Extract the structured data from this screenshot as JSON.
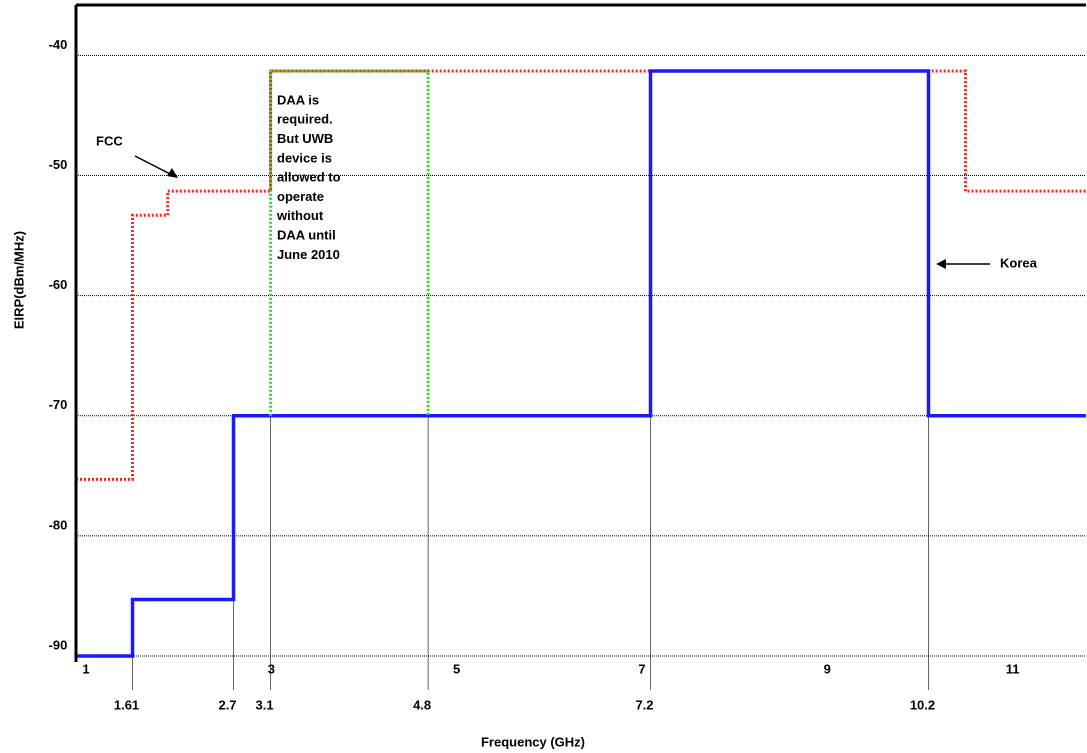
{
  "chart_data": {
    "type": "step-line",
    "x_label": "Frequency (GHz)",
    "y_label": "EIRP(dBm/MHz)",
    "xlim": [
      1,
      11.9
    ],
    "ylim": [
      -90.5,
      -35.8
    ],
    "xticks": [
      1,
      3,
      5,
      7,
      9,
      11
    ],
    "marker_ticks": [
      1.61,
      2.7,
      3.1,
      4.8,
      7.2,
      10.2
    ],
    "yticks": [
      -40,
      -50,
      -60,
      -70,
      -80,
      -90
    ],
    "grid": true,
    "series": [
      {
        "name": "FCC",
        "color": "#ff2020",
        "dash": "dotted",
        "x": [
          1,
          1.61,
          1.61,
          1.99,
          1.99,
          3.1,
          3.1,
          10.6,
          10.6,
          11.9
        ],
        "values": [
          -75.3,
          -75.3,
          -53.3,
          -53.3,
          -51.3,
          -51.3,
          -41.3,
          -41.3,
          -51.3,
          -51.3
        ]
      },
      {
        "name": "Korea",
        "color": "#1a1aff",
        "dash": "solid",
        "x": [
          1,
          1.61,
          1.61,
          2.7,
          2.7,
          7.2,
          7.2,
          10.2,
          10.2,
          11.9
        ],
        "values": [
          -90,
          -90,
          -85.3,
          -85.3,
          -70,
          -70,
          -41.3,
          -41.3,
          -70,
          -70
        ]
      },
      {
        "name": "DAA",
        "color": "#22dd22",
        "dash": "dotted",
        "x": [
          3.1,
          3.1,
          4.8,
          4.8
        ],
        "values": [
          -70,
          -41.3,
          -41.3,
          -70
        ]
      }
    ],
    "annotation_lines": [
      "DAA is",
      "required.",
      "But UWB",
      "device is",
      "allowed to",
      "operate",
      "without",
      "DAA until",
      "June 2010"
    ]
  }
}
